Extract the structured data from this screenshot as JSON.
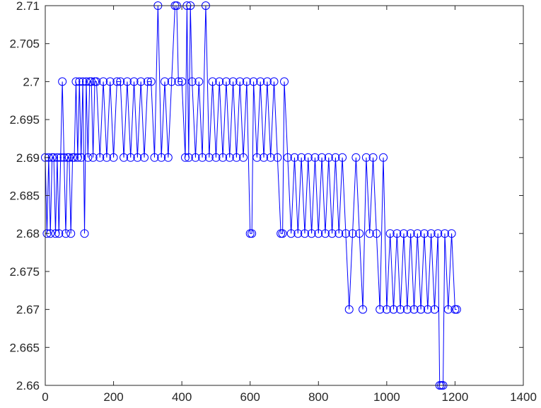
{
  "chart_data": {
    "type": "line",
    "title": "",
    "xlabel": "",
    "ylabel": "",
    "xlim": [
      0,
      1400
    ],
    "ylim": [
      2.66,
      2.71
    ],
    "x_ticks": [
      0,
      200,
      400,
      600,
      800,
      1000,
      1200,
      1400
    ],
    "x_tick_labels": [
      "0",
      "200",
      "400",
      "600",
      "800",
      "1000",
      "1200",
      "1400"
    ],
    "y_ticks": [
      2.66,
      2.665,
      2.67,
      2.675,
      2.68,
      2.685,
      2.69,
      2.695,
      2.7,
      2.705,
      2.71
    ],
    "y_tick_labels": [
      "2.66",
      "2.665",
      "2.67",
      "2.675",
      "2.68",
      "2.685",
      "2.69",
      "2.695",
      "2.7",
      "2.705",
      "2.71"
    ],
    "grid": false,
    "box": true,
    "series": [
      {
        "color": "#0000ff",
        "marker": "circle-open",
        "x": [
          0,
          5,
          10,
          15,
          20,
          25,
          30,
          35,
          40,
          45,
          50,
          55,
          60,
          65,
          70,
          75,
          80,
          85,
          90,
          95,
          100,
          105,
          110,
          115,
          120,
          125,
          130,
          135,
          140,
          145,
          150,
          160,
          170,
          180,
          190,
          200,
          210,
          220,
          230,
          240,
          250,
          260,
          270,
          280,
          290,
          300,
          310,
          320,
          330,
          340,
          350,
          360,
          370,
          380,
          385,
          390,
          400,
          410,
          415,
          420,
          425,
          430,
          440,
          450,
          460,
          470,
          480,
          490,
          500,
          510,
          520,
          530,
          540,
          550,
          560,
          570,
          580,
          590,
          600,
          605,
          610,
          620,
          630,
          640,
          650,
          660,
          670,
          680,
          690,
          695,
          700,
          710,
          720,
          730,
          740,
          750,
          760,
          770,
          780,
          790,
          800,
          810,
          820,
          830,
          840,
          850,
          860,
          870,
          880,
          890,
          900,
          910,
          920,
          930,
          940,
          950,
          960,
          970,
          980,
          990,
          1000,
          1010,
          1020,
          1030,
          1040,
          1050,
          1060,
          1070,
          1080,
          1090,
          1100,
          1110,
          1120,
          1130,
          1140,
          1150,
          1155,
          1160,
          1165,
          1170,
          1180,
          1190,
          1200,
          1205
        ],
        "y": [
          2.69,
          2.68,
          2.69,
          2.68,
          2.69,
          2.69,
          2.68,
          2.69,
          2.68,
          2.69,
          2.7,
          2.69,
          2.68,
          2.69,
          2.69,
          2.68,
          2.69,
          2.69,
          2.7,
          2.69,
          2.7,
          2.69,
          2.7,
          2.68,
          2.7,
          2.69,
          2.7,
          2.7,
          2.69,
          2.7,
          2.7,
          2.69,
          2.7,
          2.69,
          2.7,
          2.69,
          2.7,
          2.7,
          2.69,
          2.7,
          2.69,
          2.7,
          2.69,
          2.7,
          2.69,
          2.7,
          2.7,
          2.69,
          2.71,
          2.69,
          2.7,
          2.69,
          2.7,
          2.71,
          2.71,
          2.7,
          2.7,
          2.69,
          2.71,
          2.69,
          2.71,
          2.7,
          2.69,
          2.7,
          2.69,
          2.71,
          2.69,
          2.7,
          2.69,
          2.7,
          2.69,
          2.7,
          2.69,
          2.7,
          2.69,
          2.7,
          2.69,
          2.7,
          2.68,
          2.68,
          2.7,
          2.69,
          2.7,
          2.69,
          2.7,
          2.69,
          2.7,
          2.69,
          2.68,
          2.68,
          2.7,
          2.69,
          2.68,
          2.69,
          2.68,
          2.69,
          2.68,
          2.69,
          2.68,
          2.69,
          2.68,
          2.69,
          2.68,
          2.69,
          2.68,
          2.69,
          2.68,
          2.69,
          2.68,
          2.67,
          2.68,
          2.69,
          2.68,
          2.67,
          2.69,
          2.68,
          2.69,
          2.68,
          2.67,
          2.69,
          2.67,
          2.68,
          2.67,
          2.68,
          2.67,
          2.68,
          2.67,
          2.68,
          2.67,
          2.68,
          2.67,
          2.68,
          2.67,
          2.68,
          2.67,
          2.68,
          2.66,
          2.66,
          2.66,
          2.68,
          2.67,
          2.68,
          2.67,
          2.67
        ]
      }
    ]
  }
}
